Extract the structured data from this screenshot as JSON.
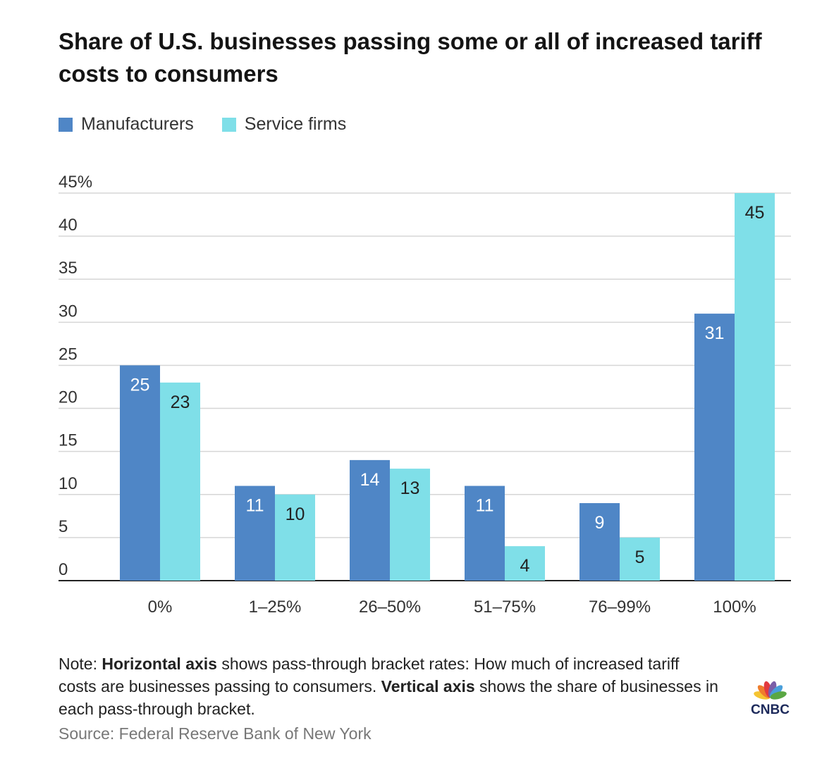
{
  "title": "Share of U.S. businesses passing some or all of increased tariff costs to consumers",
  "legend": [
    {
      "label": "Manufacturers",
      "color": "#4f86c6"
    },
    {
      "label": "Service firms",
      "color": "#7fdfe8"
    }
  ],
  "note": {
    "prefix": "Note: ",
    "bold1": "Horizontal axis",
    "text1": " shows pass-through bracket rates: How much of increased tariff costs are businesses passing to consumers. ",
    "bold2": "Vertical axis",
    "text2": " shows the share of businesses in each pass-through bracket."
  },
  "source": "Source: Federal Reserve Bank of New York",
  "logo": {
    "text": "CNBC"
  },
  "chart_data": {
    "type": "bar",
    "title": "Share of U.S. businesses passing some or all of increased tariff costs to consumers",
    "xlabel": "",
    "ylabel": "",
    "ylim": [
      0,
      45
    ],
    "yticks": [
      "0",
      "5",
      "10",
      "15",
      "20",
      "25",
      "30",
      "35",
      "40",
      "45%"
    ],
    "categories": [
      "0%",
      "1–25%",
      "26–50%",
      "51–75%",
      "76–99%",
      "100%"
    ],
    "series": [
      {
        "name": "Manufacturers",
        "values": [
          25,
          11,
          14,
          11,
          9,
          31
        ],
        "color": "#4f86c6"
      },
      {
        "name": "Service firms",
        "values": [
          23,
          10,
          13,
          4,
          5,
          45
        ],
        "color": "#7fdfe8"
      }
    ],
    "grid": true,
    "legend_position": "top-left"
  }
}
